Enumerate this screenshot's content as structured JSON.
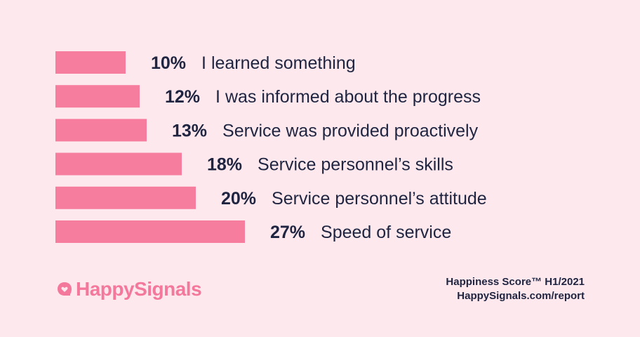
{
  "colors": {
    "background": "#fde8ed",
    "bar": "#f77d9f",
    "text": "#1f2440",
    "brand": "#f4789b"
  },
  "chart_data": {
    "type": "bar",
    "orientation": "horizontal",
    "values_unit": "%",
    "categories": [
      "I learned something",
      "I was informed about the progress",
      "Service was provided proactively",
      "Service personnel’s skills",
      "Service personnel’s attitude",
      "Speed of service"
    ],
    "values": [
      10,
      12,
      13,
      18,
      20,
      27
    ],
    "labels": [
      "10%",
      "12%",
      "13%",
      "18%",
      "20%",
      "27%"
    ]
  },
  "brand": {
    "name": "HappySignals",
    "icon": "speech-heart-icon"
  },
  "footer": {
    "line1": "Happiness Score™ H1/2021",
    "line2": "HappySignals.com/report"
  }
}
